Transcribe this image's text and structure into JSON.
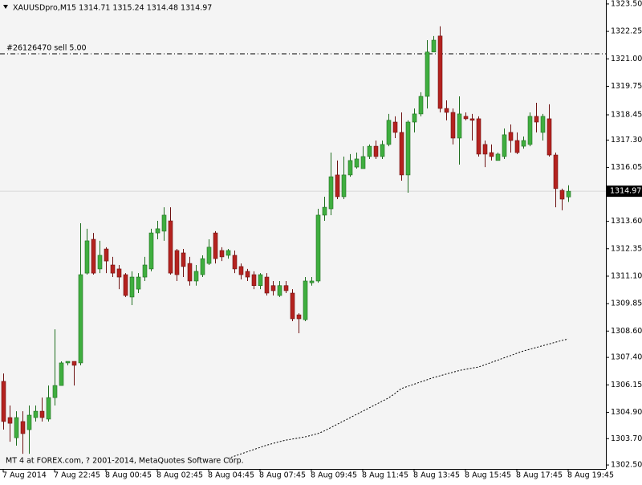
{
  "chart_data": {
    "type": "candlestick",
    "title": "XAUUSDpro,M15  1314.71 1315.24 1314.48 1314.97",
    "footer": "MT 4 at FOREX.com, ? 2001-2014, MetaQuotes Software Corp.",
    "up_color": "#3fae3f",
    "down_color": "#b4221f",
    "categories": [
      "7 Aug 2014",
      null,
      null,
      null,
      null,
      null,
      null,
      null,
      "7 Aug 22:45",
      null,
      null,
      null,
      null,
      null,
      null,
      null,
      "8 Aug 00:45",
      null,
      null,
      null,
      null,
      null,
      null,
      null,
      "8 Aug 02:45",
      null,
      null,
      null,
      null,
      null,
      null,
      null,
      "8 Aug 04:45",
      null,
      null,
      null,
      null,
      null,
      null,
      null,
      "8 Aug 07:45",
      null,
      null,
      null,
      null,
      null,
      null,
      null,
      "8 Aug 09:45",
      null,
      null,
      null,
      null,
      null,
      null,
      null,
      "8 Aug 11:45",
      null,
      null,
      null,
      null,
      null,
      null,
      null,
      "8 Aug 13:45",
      null,
      null,
      null,
      null,
      null,
      null,
      null,
      "8 Aug 15:45",
      null,
      null,
      null,
      null,
      null,
      null,
      null,
      "8 Aug 17:45",
      null,
      null,
      null,
      null,
      null,
      null,
      null,
      "8 Aug 19:45"
    ],
    "open": [
      1306.31,
      1304.66,
      1303.74,
      1304.48,
      1304.11,
      1304.66,
      1304.95,
      1304.59,
      1305.57,
      1306.12,
      1307.15,
      1307.22,
      1307.15,
      1311.24,
      1312.78,
      1311.43,
      1312.34,
      1311.61,
      1311.43,
      1311.17,
      1310.15,
      1310.51,
      1311.06,
      1311.43,
      1313.07,
      1313.15,
      1313.62,
      1312.27,
      1312.16,
      1311.68,
      1310.88,
      1311.17,
      1311.68,
      1313.07,
      1312.27,
      1312.05,
      1312.05,
      1311.54,
      1311.32,
      1311.17,
      1310.67,
      1311.06,
      1310.67,
      1310.22,
      1310.67,
      1310.33,
      1309.34,
      1309.12,
      1310.8,
      1310.88,
      1313.88,
      1314.17,
      1315.71,
      1314.72,
      1315.71,
      1316.07,
      1316.0,
      1316.55,
      1317.02,
      1316.55,
      1317.1,
      1318.12,
      1317.65,
      1315.71,
      1318.12,
      1318.49,
      1319.29,
      1321.31,
      1322.04,
      1318.74,
      1318.56,
      1317.39,
      1318.38,
      1318.27,
      1318.27,
      1317.1,
      1316.73,
      1316.37,
      1316.55,
      1317.65,
      1317.28,
      1317.02,
      1317.1,
      1318.38,
      1317.65,
      1318.27,
      1316.62,
      1315.01,
      1314.71
    ],
    "high": [
      1306.67,
      1305.21,
      1304.95,
      1304.95,
      1305.21,
      1305.21,
      1305.57,
      1306.12,
      1308.68,
      1307.22,
      1307.22,
      1307.22,
      1313.51,
      1313.26,
      1313.07,
      1312.71,
      1312.42,
      1311.98,
      1311.61,
      1311.24,
      1311.32,
      1311.24,
      1311.98,
      1313.26,
      1313.62,
      1314.24,
      1314.24,
      1312.34,
      1312.34,
      1311.98,
      1311.61,
      1312.05,
      1312.78,
      1313.15,
      1312.42,
      1312.34,
      1312.27,
      1311.68,
      1311.43,
      1311.32,
      1311.24,
      1311.24,
      1310.88,
      1310.88,
      1310.88,
      1310.51,
      1309.41,
      1311.06,
      1311.06,
      1314.17,
      1314.72,
      1316.73,
      1316.37,
      1316.55,
      1316.66,
      1316.73,
      1317.02,
      1317.1,
      1317.28,
      1317.28,
      1318.49,
      1318.38,
      1318.56,
      1318.2,
      1318.74,
      1319.48,
      1321.85,
      1322.04,
      1322.48,
      1319.11,
      1318.74,
      1319.29,
      1318.56,
      1318.49,
      1318.38,
      1317.28,
      1317.1,
      1316.73,
      1317.83,
      1318.01,
      1317.65,
      1317.46,
      1318.56,
      1319.0,
      1318.49,
      1318.93,
      1316.73,
      1315.09,
      1315.24
    ],
    "low": [
      1304.11,
      1303.56,
      1303.38,
      1303.01,
      1303.01,
      1304.48,
      1304.48,
      1304.48,
      1305.21,
      1306.12,
      1307.04,
      1306.12,
      1307.04,
      1311.17,
      1311.17,
      1311.24,
      1311.24,
      1311.06,
      1310.51,
      1310.15,
      1309.78,
      1310.33,
      1310.88,
      1311.32,
      1312.78,
      1312.71,
      1311.17,
      1310.88,
      1311.06,
      1310.67,
      1310.67,
      1311.06,
      1311.61,
      1311.68,
      1311.79,
      1311.9,
      1311.24,
      1310.95,
      1310.88,
      1310.51,
      1310.51,
      1310.22,
      1310.22,
      1310.15,
      1310.33,
      1309.05,
      1308.5,
      1309.05,
      1310.67,
      1310.8,
      1313.62,
      1313.88,
      1314.61,
      1314.61,
      1315.63,
      1316.0,
      1316.0,
      1316.44,
      1316.44,
      1316.44,
      1317.02,
      1317.39,
      1315.45,
      1314.9,
      1317.65,
      1318.38,
      1318.74,
      1321.31,
      1318.56,
      1318.2,
      1317.1,
      1316.18,
      1318.2,
      1317.28,
      1316.55,
      1316.07,
      1316.37,
      1316.37,
      1316.44,
      1316.73,
      1316.66,
      1316.91,
      1317.02,
      1317.65,
      1317.28,
      1316.55,
      1314.24,
      1314.1,
      1314.48
    ],
    "close": [
      1304.48,
      1304.4,
      1304.66,
      1303.93,
      1304.77,
      1304.95,
      1304.66,
      1305.57,
      1306.12,
      1307.15,
      1307.22,
      1307.04,
      1311.17,
      1312.71,
      1311.24,
      1312.05,
      1311.79,
      1311.24,
      1311.06,
      1310.22,
      1311.06,
      1311.06,
      1311.61,
      1313.07,
      1313.26,
      1313.88,
      1311.24,
      1311.17,
      1311.54,
      1310.88,
      1311.32,
      1311.9,
      1312.42,
      1311.9,
      1311.98,
      1312.27,
      1311.43,
      1311.17,
      1311.06,
      1310.67,
      1311.17,
      1310.33,
      1310.44,
      1310.67,
      1310.44,
      1309.16,
      1309.16,
      1310.88,
      1310.88,
      1313.88,
      1314.24,
      1315.63,
      1314.72,
      1315.71,
      1316.37,
      1316.44,
      1316.55,
      1317.02,
      1316.55,
      1317.1,
      1318.2,
      1317.65,
      1315.71,
      1318.12,
      1318.49,
      1319.29,
      1321.31,
      1321.85,
      1318.74,
      1318.56,
      1317.39,
      1318.49,
      1318.27,
      1318.2,
      1316.66,
      1316.66,
      1316.55,
      1316.66,
      1317.54,
      1317.28,
      1316.73,
      1317.28,
      1318.38,
      1318.12,
      1318.38,
      1316.62,
      1315.09,
      1314.61,
      1314.97
    ],
    "ma": {
      "color": "#000000",
      "values": [
        null,
        null,
        null,
        null,
        null,
        null,
        null,
        null,
        null,
        null,
        null,
        null,
        null,
        null,
        null,
        null,
        null,
        null,
        null,
        null,
        null,
        null,
        null,
        null,
        null,
        null,
        null,
        null,
        null,
        null,
        null,
        null,
        null,
        null,
        null,
        1302.8,
        1302.9,
        1303.0,
        1303.1,
        1303.2,
        1303.3,
        1303.4,
        1303.48,
        1303.56,
        1303.63,
        1303.68,
        1303.73,
        1303.78,
        1303.85,
        1303.93,
        1304.05,
        1304.2,
        1304.35,
        1304.5,
        1304.65,
        1304.8,
        1304.95,
        1305.1,
        1305.25,
        1305.4,
        1305.55,
        1305.75,
        1305.98,
        1306.08,
        1306.18,
        1306.28,
        1306.38,
        1306.48,
        1306.56,
        1306.64,
        1306.72,
        1306.8,
        1306.86,
        1306.91,
        1306.96,
        1307.06,
        1307.17,
        1307.27,
        1307.38,
        1307.48,
        1307.59,
        1307.69,
        1307.77,
        1307.85,
        1307.93,
        1308.01,
        1308.09,
        1308.17,
        1308.24
      ]
    },
    "order": {
      "label": "#26126470 sell 5.00",
      "price": 1321.23
    },
    "current_price": 1314.97,
    "ylim": [
      1302.32,
      1323.68
    ],
    "yticks": [
      {
        "value": 1302.5,
        "label": "1302.50"
      },
      {
        "value": 1303.7,
        "label": "1303.70"
      },
      {
        "value": 1304.9,
        "label": "1304.90"
      },
      1306.15,
      {
        "value": 1307.4,
        "label": "1307.40"
      },
      {
        "value": 1308.6,
        "label": "1308.60"
      },
      1309.85,
      {
        "value": 1311.1,
        "label": "1311.10"
      },
      1312.35,
      {
        "value": 1313.6,
        "label": "1313.60"
      },
      1316.05,
      {
        "value": 1317.3,
        "label": "1317.30"
      },
      1318.45,
      1319.75,
      {
        "value": 1321.0,
        "label": "1321.00"
      },
      1322.25,
      {
        "value": 1323.5,
        "label": "1323.50"
      }
    ],
    "grid": false
  }
}
